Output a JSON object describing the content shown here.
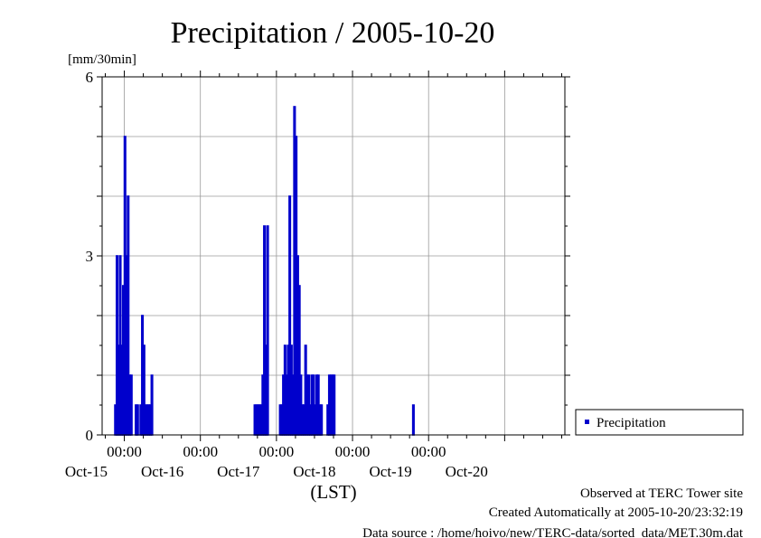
{
  "chart_data": {
    "type": "bar",
    "title": "Precipitation / 2005-10-20",
    "ylabel": "[mm/30min]",
    "xlabel": "(LST)",
    "ylim": [
      0,
      6
    ],
    "yticks": [
      "0",
      "3",
      "6"
    ],
    "x_range": [
      "2005-10-14 17:00",
      "2005-10-20 19:00"
    ],
    "x_time_labels": [
      "00:00",
      "00:00",
      "00:00",
      "00:00",
      "00:00"
    ],
    "x_date_labels": [
      "Oct-15",
      "Oct-16",
      "Oct-17",
      "Oct-18",
      "Oct-19",
      "Oct-20"
    ],
    "grid": true,
    "legend_position": "right",
    "bar_color": "#0000cc",
    "series": [
      {
        "name": "Precipitation",
        "points": [
          [
            "2005-10-14 21:00",
            0.5
          ],
          [
            "2005-10-14 21:30",
            3.0
          ],
          [
            "2005-10-14 22:00",
            1.5
          ],
          [
            "2005-10-14 22:30",
            3.0
          ],
          [
            "2005-10-14 23:00",
            1.5
          ],
          [
            "2005-10-14 23:30",
            2.5
          ],
          [
            "2005-10-15 00:00",
            5.0
          ],
          [
            "2005-10-15 00:30",
            3.0
          ],
          [
            "2005-10-15 01:00",
            4.0
          ],
          [
            "2005-10-15 01:30",
            1.0
          ],
          [
            "2005-10-15 02:00",
            1.0
          ],
          [
            "2005-10-15 03:30",
            0.5
          ],
          [
            "2005-10-15 04:00",
            0.5
          ],
          [
            "2005-10-15 05:00",
            0.5
          ],
          [
            "2005-10-15 05:30",
            2.0
          ],
          [
            "2005-10-15 06:00",
            1.5
          ],
          [
            "2005-10-15 06:30",
            0.5
          ],
          [
            "2005-10-15 07:00",
            0.5
          ],
          [
            "2005-10-15 07:30",
            0.5
          ],
          [
            "2005-10-15 08:00",
            0.5
          ],
          [
            "2005-10-15 08:30",
            1.0
          ],
          [
            "2005-10-16 17:00",
            0.5
          ],
          [
            "2005-10-16 17:30",
            0.5
          ],
          [
            "2005-10-16 18:00",
            0.5
          ],
          [
            "2005-10-16 18:30",
            0.5
          ],
          [
            "2005-10-16 19:00",
            0.5
          ],
          [
            "2005-10-16 19:30",
            1.0
          ],
          [
            "2005-10-16 20:00",
            3.5
          ],
          [
            "2005-10-16 20:30",
            1.5
          ],
          [
            "2005-10-16 21:00",
            3.5
          ],
          [
            "2005-10-17 01:00",
            0.5
          ],
          [
            "2005-10-17 01:30",
            0.5
          ],
          [
            "2005-10-17 02:00",
            1.0
          ],
          [
            "2005-10-17 02:30",
            1.5
          ],
          [
            "2005-10-17 03:00",
            1.0
          ],
          [
            "2005-10-17 03:30",
            1.5
          ],
          [
            "2005-10-17 04:00",
            4.0
          ],
          [
            "2005-10-17 04:30",
            1.5
          ],
          [
            "2005-10-17 05:00",
            1.0
          ],
          [
            "2005-10-17 05:30",
            5.5
          ],
          [
            "2005-10-17 06:00",
            5.0
          ],
          [
            "2005-10-17 06:30",
            3.0
          ],
          [
            "2005-10-17 07:00",
            2.5
          ],
          [
            "2005-10-17 07:30",
            1.0
          ],
          [
            "2005-10-17 08:00",
            0.5
          ],
          [
            "2005-10-17 08:30",
            0.5
          ],
          [
            "2005-10-17 09:00",
            1.5
          ],
          [
            "2005-10-17 09:30",
            1.0
          ],
          [
            "2005-10-17 10:00",
            1.0
          ],
          [
            "2005-10-17 10:30",
            0.5
          ],
          [
            "2005-10-17 11:00",
            1.0
          ],
          [
            "2005-10-17 11:30",
            1.0
          ],
          [
            "2005-10-17 12:00",
            0.5
          ],
          [
            "2005-10-17 12:30",
            1.0
          ],
          [
            "2005-10-17 13:00",
            1.0
          ],
          [
            "2005-10-17 13:30",
            0.5
          ],
          [
            "2005-10-17 14:00",
            0.5
          ],
          [
            "2005-10-17 16:00",
            0.5
          ],
          [
            "2005-10-17 16:30",
            1.0
          ],
          [
            "2005-10-17 17:00",
            1.0
          ],
          [
            "2005-10-17 17:30",
            1.0
          ],
          [
            "2005-10-17 18:00",
            1.0
          ],
          [
            "2005-10-18 19:00",
            0.5
          ]
        ]
      }
    ]
  },
  "legend": {
    "label": "Precipitation",
    "marker_color": "#0000cc"
  },
  "footer": {
    "line1": "Observed at TERC Tower site",
    "line2": "Created Automatically at 2005-10-20/23:32:19",
    "line3": "Data source : /home/hoivo/new/TERC-data/sorted  data/MET.30m.dat"
  }
}
